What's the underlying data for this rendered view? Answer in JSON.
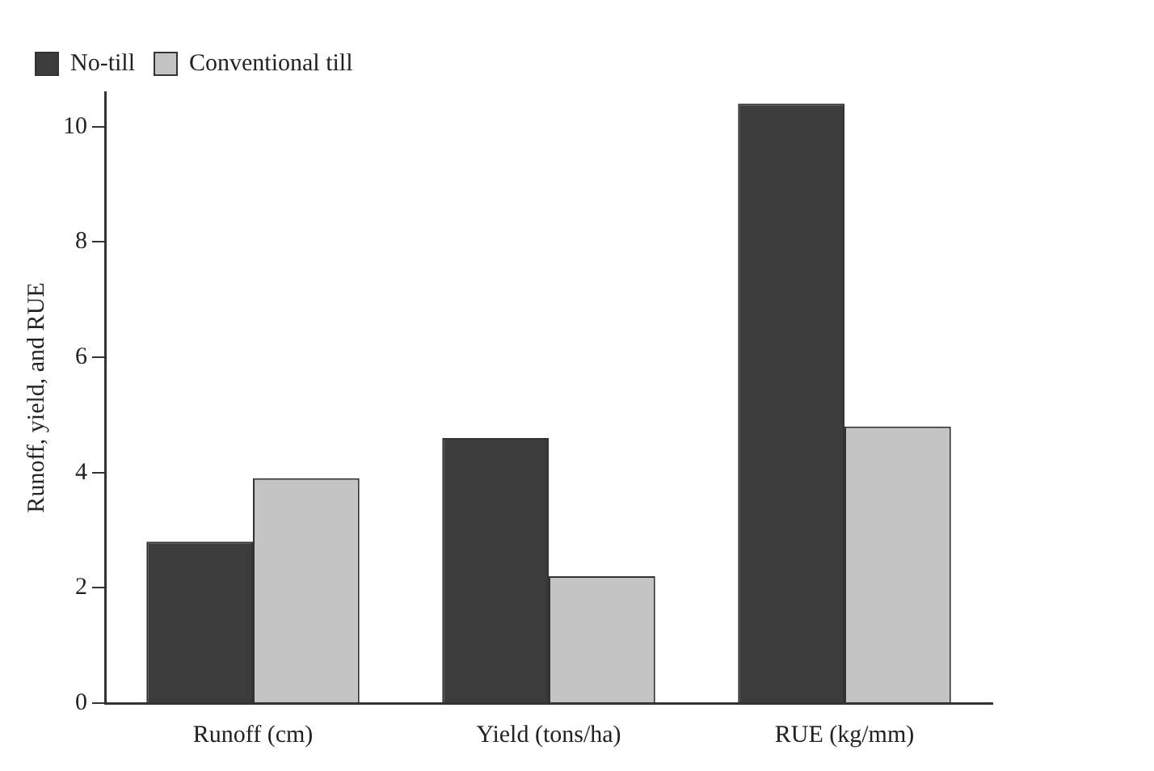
{
  "chart_data": {
    "type": "bar",
    "ylabel": "Runoff, yield, and RUE",
    "categories": [
      "Runoff (cm)",
      "Yield (tons/ha)",
      "RUE (kg/mm)"
    ],
    "series": [
      {
        "name": "No-till",
        "color": "#3c3c3c",
        "values": [
          2.8,
          4.6,
          10.4
        ]
      },
      {
        "name": "Conventional till",
        "color": "#c4c4c4",
        "values": [
          3.9,
          2.2,
          4.8
        ]
      }
    ],
    "ylim": [
      0,
      10.6
    ],
    "yticks": [
      0,
      2,
      4,
      6,
      8,
      10
    ],
    "grid": false,
    "legend": "top left"
  }
}
